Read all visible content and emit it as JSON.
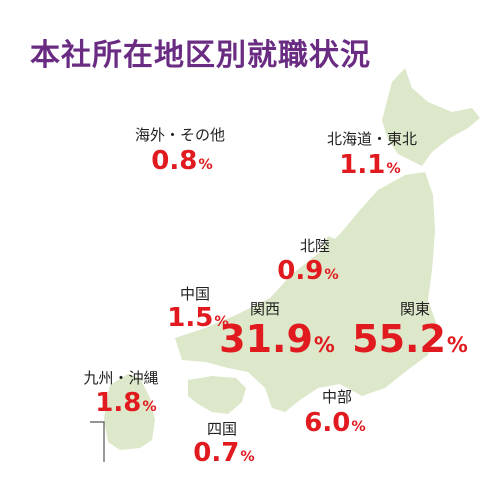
{
  "title": "本社所在地区別就職状況",
  "colors": {
    "title": "#6a2c82",
    "value": "#e01a1f",
    "map": "#dce8c9",
    "text": "#222222"
  },
  "chart_data": {
    "type": "map",
    "title": "本社所在地区別就職状況",
    "unit": "%",
    "regions": [
      {
        "name": "北海道・東北",
        "value": 1.1,
        "value_text": "1.1"
      },
      {
        "name": "関東",
        "value": 55.2,
        "value_text": "55.2"
      },
      {
        "name": "中部",
        "value": 6.0,
        "value_text": "6.0"
      },
      {
        "name": "北陸",
        "value": 0.9,
        "value_text": "0.9"
      },
      {
        "name": "関西",
        "value": 31.9,
        "value_text": "31.9"
      },
      {
        "name": "中国",
        "value": 1.5,
        "value_text": "1.5"
      },
      {
        "name": "四国",
        "value": 0.7,
        "value_text": "0.7"
      },
      {
        "name": "九州・沖縄",
        "value": 1.8,
        "value_text": "1.8"
      },
      {
        "name": "海外・その他",
        "value": 0.8,
        "value_text": "0.8"
      }
    ]
  }
}
